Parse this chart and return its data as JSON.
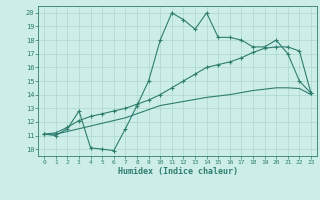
{
  "xlabel": "Humidex (Indice chaleur)",
  "background_color": "#cdeee8",
  "grid_color": "#aad8cc",
  "line_color": "#2e7d6e",
  "xlim": [
    -0.5,
    23.5
  ],
  "ylim": [
    9.5,
    20.5
  ],
  "xticks": [
    0,
    1,
    2,
    3,
    4,
    5,
    6,
    7,
    8,
    9,
    10,
    11,
    12,
    13,
    14,
    15,
    16,
    17,
    18,
    19,
    20,
    21,
    22,
    23
  ],
  "yticks": [
    10,
    11,
    12,
    13,
    14,
    15,
    16,
    17,
    18,
    19,
    20
  ],
  "line1_x": [
    0,
    1,
    2,
    3,
    4,
    5,
    6,
    7,
    8,
    9,
    10,
    11,
    12,
    13,
    14,
    15,
    16,
    17,
    18,
    19,
    20,
    21,
    22,
    23
  ],
  "line1_y": [
    11.1,
    11.0,
    11.5,
    12.8,
    10.1,
    10.0,
    9.9,
    11.5,
    13.2,
    15.0,
    18.0,
    20.0,
    19.5,
    18.8,
    20.0,
    18.2,
    18.2,
    18.0,
    17.5,
    17.5,
    18.0,
    17.0,
    15.0,
    14.1
  ],
  "line2_x": [
    0,
    1,
    2,
    3,
    4,
    5,
    6,
    7,
    8,
    9,
    10,
    11,
    12,
    13,
    14,
    15,
    16,
    17,
    18,
    19,
    20,
    21,
    22,
    23
  ],
  "line2_y": [
    11.1,
    11.2,
    11.6,
    12.1,
    12.4,
    12.6,
    12.8,
    13.0,
    13.3,
    13.6,
    14.0,
    14.5,
    15.0,
    15.5,
    16.0,
    16.2,
    16.4,
    16.7,
    17.1,
    17.4,
    17.5,
    17.5,
    17.2,
    14.1
  ],
  "line3_x": [
    0,
    1,
    2,
    3,
    4,
    5,
    6,
    7,
    8,
    9,
    10,
    11,
    12,
    13,
    14,
    15,
    16,
    17,
    18,
    19,
    20,
    21,
    22,
    23
  ],
  "line3_y": [
    11.1,
    11.1,
    11.3,
    11.5,
    11.7,
    11.9,
    12.1,
    12.3,
    12.6,
    12.9,
    13.2,
    13.35,
    13.5,
    13.65,
    13.8,
    13.9,
    14.0,
    14.15,
    14.3,
    14.4,
    14.5,
    14.5,
    14.45,
    14.0
  ]
}
